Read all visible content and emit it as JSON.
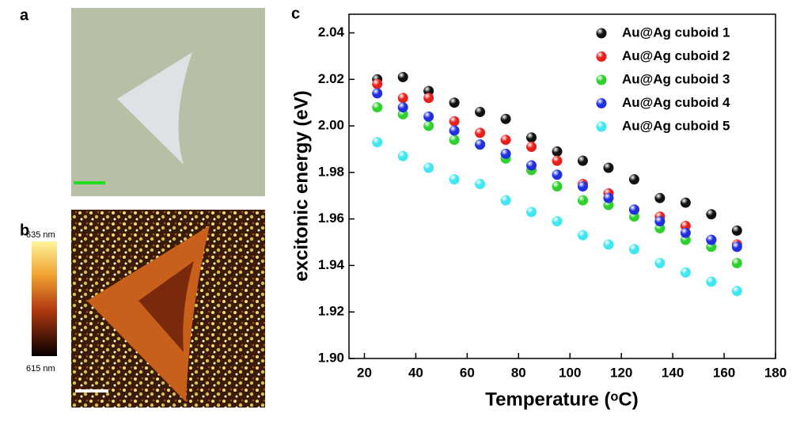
{
  "panels": {
    "a": {
      "label": "a"
    },
    "b": {
      "label": "b",
      "colorbar_max": "635 nm",
      "colorbar_min": "615 nm"
    },
    "c": {
      "label": "c"
    }
  },
  "chart_data": {
    "type": "scatter",
    "x_label": "Temperature (ᵒC)",
    "y_label": "excitonic energy (eV)",
    "x": [
      25,
      35,
      45,
      55,
      65,
      75,
      85,
      95,
      105,
      115,
      125,
      135,
      145,
      155,
      165
    ],
    "series": [
      {
        "name": "Au@Ag cuboid 1",
        "color": "#111111",
        "values": [
          2.02,
          2.021,
          2.015,
          2.01,
          2.006,
          2.003,
          1.995,
          1.989,
          1.985,
          1.982,
          1.977,
          1.969,
          1.967,
          1.962,
          1.955
        ]
      },
      {
        "name": "Au@Ag cuboid 2",
        "color": "#e8201c",
        "values": [
          2.018,
          2.012,
          2.012,
          2.002,
          1.997,
          1.994,
          1.991,
          1.985,
          1.975,
          1.971,
          1.964,
          1.961,
          1.957,
          1.951,
          1.949
        ]
      },
      {
        "name": "Au@Ag cuboid 3",
        "color": "#2ed02e",
        "values": [
          2.008,
          2.005,
          2.0,
          1.994,
          1.992,
          1.986,
          1.981,
          1.974,
          1.968,
          1.966,
          1.961,
          1.956,
          1.951,
          1.948,
          1.941
        ]
      },
      {
        "name": "Au@Ag cuboid 4",
        "color": "#2030e0",
        "values": [
          2.014,
          2.008,
          2.004,
          1.998,
          1.992,
          1.988,
          1.983,
          1.979,
          1.974,
          1.969,
          1.964,
          1.959,
          1.954,
          1.951,
          1.948
        ]
      },
      {
        "name": "Au@Ag cuboid 5",
        "color": "#40e6f0",
        "values": [
          1.993,
          1.987,
          1.982,
          1.977,
          1.975,
          1.968,
          1.963,
          1.959,
          1.953,
          1.949,
          1.947,
          1.941,
          1.937,
          1.933,
          1.929
        ]
      }
    ],
    "xlim": [
      14,
      180
    ],
    "xticks": [
      20,
      40,
      60,
      80,
      100,
      120,
      140,
      160,
      180
    ],
    "ylim": [
      1.9,
      2.048
    ],
    "yticks": [
      {
        "value": 1.9,
        "label": "1.90"
      },
      1.92,
      1.94,
      1.96,
      1.98,
      {
        "value": 2.0,
        "label": "2.00"
      },
      2.02,
      2.04
    ],
    "legend": "upper right"
  }
}
